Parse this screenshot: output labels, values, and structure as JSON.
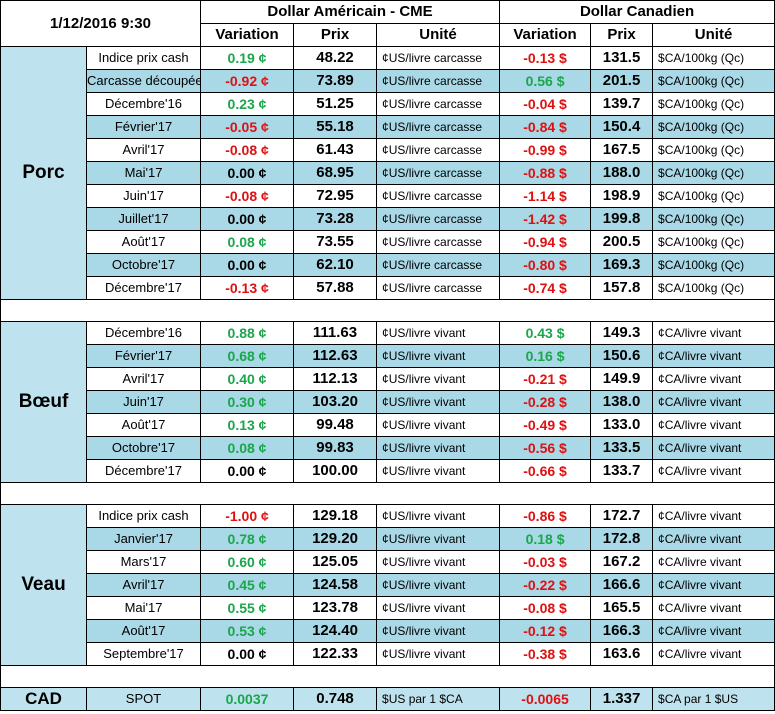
{
  "header": {
    "date": "1/12/2016 9:30",
    "usd_title": "Dollar Américain - CME",
    "cad_title": "Dollar Canadien",
    "col_variation": "Variation",
    "col_prix": "Prix",
    "col_unite": "Unité"
  },
  "colors": {
    "positive": "#1aa64a",
    "negative": "#e01010",
    "row_blue": "#a9d8e6",
    "category_bg": "#bfe3ee"
  },
  "sections": [
    {
      "name": "Porc",
      "rows": [
        {
          "label": "Indice prix cash",
          "usd_var": "0.19 ¢",
          "usd_price": "48.22",
          "usd_unit": "¢US/livre carcasse",
          "cad_var": "-0.13 $",
          "cad_price": "131.5",
          "cad_unit": "$CA/100kg (Qc)"
        },
        {
          "label": "Carcasse découpée",
          "usd_var": "-0.92 ¢",
          "usd_price": "73.89",
          "usd_unit": "¢US/livre carcasse",
          "cad_var": "0.56 $",
          "cad_price": "201.5",
          "cad_unit": "$CA/100kg (Qc)"
        },
        {
          "label": "Décembre'16",
          "usd_var": "0.23 ¢",
          "usd_price": "51.25",
          "usd_unit": "¢US/livre carcasse",
          "cad_var": "-0.04 $",
          "cad_price": "139.7",
          "cad_unit": "$CA/100kg (Qc)"
        },
        {
          "label": "Février'17",
          "usd_var": "-0.05 ¢",
          "usd_price": "55.18",
          "usd_unit": "¢US/livre carcasse",
          "cad_var": "-0.84 $",
          "cad_price": "150.4",
          "cad_unit": "$CA/100kg (Qc)"
        },
        {
          "label": "Avril'17",
          "usd_var": "-0.08 ¢",
          "usd_price": "61.43",
          "usd_unit": "¢US/livre carcasse",
          "cad_var": "-0.99 $",
          "cad_price": "167.5",
          "cad_unit": "$CA/100kg (Qc)"
        },
        {
          "label": "Mai'17",
          "usd_var": "0.00 ¢",
          "usd_price": "68.95",
          "usd_unit": "¢US/livre carcasse",
          "cad_var": "-0.88 $",
          "cad_price": "188.0",
          "cad_unit": "$CA/100kg (Qc)"
        },
        {
          "label": "Juin'17",
          "usd_var": "-0.08 ¢",
          "usd_price": "72.95",
          "usd_unit": "¢US/livre carcasse",
          "cad_var": "-1.14 $",
          "cad_price": "198.9",
          "cad_unit": "$CA/100kg (Qc)"
        },
        {
          "label": "Juillet'17",
          "usd_var": "0.00 ¢",
          "usd_price": "73.28",
          "usd_unit": "¢US/livre carcasse",
          "cad_var": "-1.42 $",
          "cad_price": "199.8",
          "cad_unit": "$CA/100kg (Qc)"
        },
        {
          "label": "Août'17",
          "usd_var": "0.08 ¢",
          "usd_price": "73.55",
          "usd_unit": "¢US/livre carcasse",
          "cad_var": "-0.94 $",
          "cad_price": "200.5",
          "cad_unit": "$CA/100kg (Qc)"
        },
        {
          "label": "Octobre'17",
          "usd_var": "0.00 ¢",
          "usd_price": "62.10",
          "usd_unit": "¢US/livre carcasse",
          "cad_var": "-0.80 $",
          "cad_price": "169.3",
          "cad_unit": "$CA/100kg (Qc)"
        },
        {
          "label": "Décembre'17",
          "usd_var": "-0.13 ¢",
          "usd_price": "57.88",
          "usd_unit": "¢US/livre carcasse",
          "cad_var": "-0.74 $",
          "cad_price": "157.8",
          "cad_unit": "$CA/100kg (Qc)"
        }
      ]
    },
    {
      "name": "Bœuf",
      "rows": [
        {
          "label": "Décembre'16",
          "usd_var": "0.88 ¢",
          "usd_price": "111.63",
          "usd_unit": "¢US/livre vivant",
          "cad_var": "0.43 $",
          "cad_price": "149.3",
          "cad_unit": "¢CA/livre vivant"
        },
        {
          "label": "Février'17",
          "usd_var": "0.68 ¢",
          "usd_price": "112.63",
          "usd_unit": "¢US/livre vivant",
          "cad_var": "0.16 $",
          "cad_price": "150.6",
          "cad_unit": "¢CA/livre vivant"
        },
        {
          "label": "Avril'17",
          "usd_var": "0.40 ¢",
          "usd_price": "112.13",
          "usd_unit": "¢US/livre vivant",
          "cad_var": "-0.21 $",
          "cad_price": "149.9",
          "cad_unit": "¢CA/livre vivant"
        },
        {
          "label": "Juin'17",
          "usd_var": "0.30 ¢",
          "usd_price": "103.20",
          "usd_unit": "¢US/livre vivant",
          "cad_var": "-0.28 $",
          "cad_price": "138.0",
          "cad_unit": "¢CA/livre vivant"
        },
        {
          "label": "Août'17",
          "usd_var": "0.13 ¢",
          "usd_price": "99.48",
          "usd_unit": "¢US/livre vivant",
          "cad_var": "-0.49 $",
          "cad_price": "133.0",
          "cad_unit": "¢CA/livre vivant"
        },
        {
          "label": "Octobre'17",
          "usd_var": "0.08 ¢",
          "usd_price": "99.83",
          "usd_unit": "¢US/livre vivant",
          "cad_var": "-0.56 $",
          "cad_price": "133.5",
          "cad_unit": "¢CA/livre vivant"
        },
        {
          "label": "Décembre'17",
          "usd_var": "0.00 ¢",
          "usd_price": "100.00",
          "usd_unit": "¢US/livre vivant",
          "cad_var": "-0.66 $",
          "cad_price": "133.7",
          "cad_unit": "¢CA/livre vivant"
        }
      ]
    },
    {
      "name": "Veau",
      "rows": [
        {
          "label": "Indice prix cash",
          "usd_var": "-1.00 ¢",
          "usd_price": "129.18",
          "usd_unit": "¢US/livre vivant",
          "cad_var": "-0.86 $",
          "cad_price": "172.7",
          "cad_unit": "¢CA/livre vivant"
        },
        {
          "label": "Janvier'17",
          "usd_var": "0.78 ¢",
          "usd_price": "129.20",
          "usd_unit": "¢US/livre vivant",
          "cad_var": "0.18 $",
          "cad_price": "172.8",
          "cad_unit": "¢CA/livre vivant"
        },
        {
          "label": "Mars'17",
          "usd_var": "0.60 ¢",
          "usd_price": "125.05",
          "usd_unit": "¢US/livre vivant",
          "cad_var": "-0.03 $",
          "cad_price": "167.2",
          "cad_unit": "¢CA/livre vivant"
        },
        {
          "label": "Avril'17",
          "usd_var": "0.45 ¢",
          "usd_price": "124.58",
          "usd_unit": "¢US/livre vivant",
          "cad_var": "-0.22 $",
          "cad_price": "166.6",
          "cad_unit": "¢CA/livre vivant"
        },
        {
          "label": "Mai'17",
          "usd_var": "0.55 ¢",
          "usd_price": "123.78",
          "usd_unit": "¢US/livre vivant",
          "cad_var": "-0.08 $",
          "cad_price": "165.5",
          "cad_unit": "¢CA/livre vivant"
        },
        {
          "label": "Août'17",
          "usd_var": "0.53 ¢",
          "usd_price": "124.40",
          "usd_unit": "¢US/livre vivant",
          "cad_var": "-0.12 $",
          "cad_price": "166.3",
          "cad_unit": "¢CA/livre vivant"
        },
        {
          "label": "Septembre'17",
          "usd_var": "0.00 ¢",
          "usd_price": "122.33",
          "usd_unit": "¢US/livre vivant",
          "cad_var": "-0.38 $",
          "cad_price": "163.6",
          "cad_unit": "¢CA/livre vivant"
        }
      ]
    }
  ],
  "cad_row": {
    "name": "CAD",
    "label": "SPOT",
    "usd_var": "0.0037",
    "usd_price": "0.748",
    "usd_unit": "$US par 1 $CA",
    "cad_var": "-0.0065",
    "cad_price": "1.337",
    "cad_unit": "$CA par 1 $US"
  }
}
